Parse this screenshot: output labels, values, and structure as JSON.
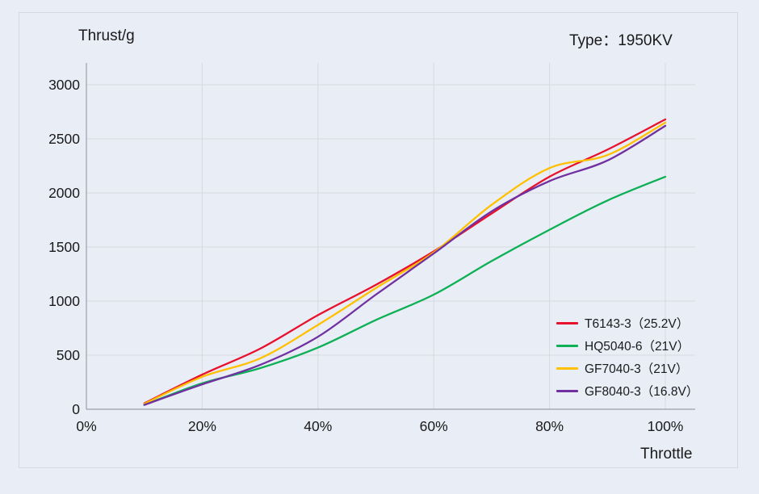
{
  "header": {
    "title": "Thrust/g",
    "type_label": "Type：1950KV"
  },
  "axes": {
    "x_title": "Throttle",
    "x_tick_labels": [
      "0%",
      "20%",
      "40%",
      "60%",
      "80%",
      "100%"
    ],
    "x_tick_values": [
      0,
      20,
      40,
      60,
      80,
      100
    ],
    "y_tick_labels": [
      "0",
      "500",
      "1000",
      "1500",
      "2000",
      "2500",
      "3000"
    ],
    "y_tick_values": [
      0,
      500,
      1000,
      1500,
      2000,
      2500,
      3000
    ]
  },
  "colors": {
    "background": "#e9edf6",
    "card_border": "#d5d9e1",
    "grid": "#d7d9de",
    "axis": "#9aa0a8",
    "text": "#1a1a1a"
  },
  "chart_data": {
    "type": "line",
    "title": "Thrust/g",
    "xlabel": "Throttle",
    "ylabel": "Thrust/g",
    "subtitle": "Type：1950KV",
    "xlim": [
      0,
      100
    ],
    "ylim": [
      0,
      3000
    ],
    "grid": true,
    "legend_position": "inside-bottom-right",
    "x": [
      10,
      20,
      30,
      40,
      50,
      60,
      70,
      80,
      90,
      100
    ],
    "series": [
      {
        "name": "T6143-3",
        "label": "T6143-3（25.2V）",
        "color": "#e8112d",
        "values": [
          55,
          320,
          560,
          870,
          1150,
          1460,
          1810,
          2150,
          2400,
          2680
        ]
      },
      {
        "name": "HQ5040-6",
        "label": "HQ5040-6（21V）",
        "color": "#0db055",
        "values": [
          40,
          240,
          380,
          570,
          825,
          1060,
          1370,
          1660,
          1930,
          2150
        ]
      },
      {
        "name": "GF7040-3",
        "label": "GF7040-3（21V）",
        "color": "#ffc000",
        "values": [
          50,
          300,
          470,
          780,
          1120,
          1450,
          1890,
          2230,
          2350,
          2650
        ]
      },
      {
        "name": "GF8040-3",
        "label": "GF8040-3（16.8V）",
        "color": "#7030a0",
        "values": [
          40,
          230,
          410,
          670,
          1060,
          1440,
          1830,
          2110,
          2300,
          2620
        ]
      }
    ]
  }
}
